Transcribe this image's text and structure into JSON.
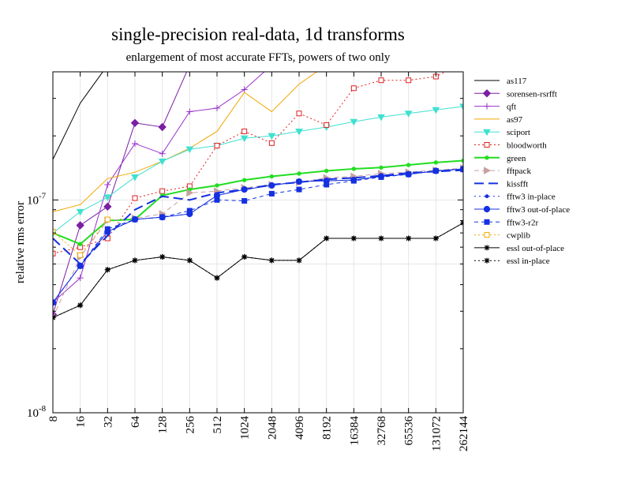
{
  "chart_data": {
    "type": "line",
    "title": "single-precision real-data, 1d transforms",
    "subtitle": "enlargement of most accurate FFTs, powers of two only",
    "xlabel": "",
    "ylabel": "relative rms error",
    "yscale": "log",
    "ylim": [
      1e-08,
      4e-07
    ],
    "y_tick_labels": [
      {
        "mantissa": "10",
        "exponent": "-8",
        "value": 1e-08
      },
      {
        "mantissa": "10",
        "exponent": "-7",
        "value": 1e-07
      }
    ],
    "categories": [
      "8",
      "16",
      "32",
      "64",
      "128",
      "256",
      "512",
      "1024",
      "2048",
      "4096",
      "8192",
      "16384",
      "32768",
      "65536",
      "131072",
      "262144"
    ],
    "legend_position": "right",
    "series": [
      {
        "name": "as117",
        "color": "#000000",
        "dash": "",
        "marker": "none",
        "values": [
          1.55e-07,
          2.85e-07,
          4.3e-07,
          null,
          null,
          null,
          null,
          null,
          null,
          null,
          null,
          null,
          null,
          null,
          null,
          null
        ]
      },
      {
        "name": "sorensen-rsrfft",
        "color": "#7B1FA2",
        "dash": "",
        "marker": "diamond",
        "values": [
          2.9e-08,
          7.6e-08,
          9.3e-08,
          2.3e-07,
          2.2e-07,
          4.3e-07,
          null,
          null,
          null,
          null,
          null,
          null,
          null,
          null,
          null,
          null
        ]
      },
      {
        "name": "qft",
        "color": "#9932CC",
        "dash": "",
        "marker": "plus",
        "values": [
          3.3e-08,
          4.3e-08,
          1.18e-07,
          1.84e-07,
          1.65e-07,
          2.6e-07,
          2.7e-07,
          3.3e-07,
          4.3e-07,
          null,
          null,
          null,
          null,
          null,
          null,
          null
        ]
      },
      {
        "name": "as97",
        "color": "#F0A800",
        "dash": "",
        "marker": "none",
        "values": [
          8.8e-08,
          9.5e-08,
          1.26e-07,
          1.35e-07,
          1.52e-07,
          1.75e-07,
          2.1e-07,
          3.2e-07,
          2.6e-07,
          3.5e-07,
          4.3e-07,
          null,
          null,
          null,
          null,
          null
        ]
      },
      {
        "name": "sciport",
        "color": "#40E0D0",
        "dash": "",
        "marker": "tri-down",
        "values": [
          7e-08,
          8.8e-08,
          1.03e-07,
          1.28e-07,
          1.52e-07,
          1.73e-07,
          1.8e-07,
          1.95e-07,
          2e-07,
          2.1e-07,
          2.2e-07,
          2.33e-07,
          2.45e-07,
          2.55e-07,
          2.65e-07,
          2.75e-07
        ]
      },
      {
        "name": "bloodworth",
        "color": "#E02020",
        "dash": "2,3",
        "marker": "square-open",
        "values": [
          5.6e-08,
          6e-08,
          6.6e-08,
          1.02e-07,
          1.1e-07,
          1.16e-07,
          1.8e-07,
          2.1e-07,
          1.85e-07,
          2.55e-07,
          2.25e-07,
          3.35e-07,
          3.65e-07,
          3.65e-07,
          3.8e-07,
          4.4e-07
        ]
      },
      {
        "name": "green",
        "color": "#22DD22",
        "dash": "",
        "marker": "circle-small",
        "values": [
          7e-08,
          6.2e-08,
          8e-08,
          8.1e-08,
          1.05e-07,
          1.12e-07,
          1.17e-07,
          1.24e-07,
          1.29e-07,
          1.33e-07,
          1.37e-07,
          1.4e-07,
          1.42e-07,
          1.46e-07,
          1.5e-07,
          1.53e-07
        ]
      },
      {
        "name": "fftpack",
        "color": "#C8A0A0",
        "dash": "6,4",
        "marker": "tri-right",
        "values": [
          2.8e-08,
          5.4e-08,
          8e-08,
          8.2e-08,
          8.6e-08,
          1.08e-07,
          1.1e-07,
          1.14e-07,
          1.18e-07,
          1.21e-07,
          1.27e-07,
          1.29e-07,
          1.33e-07,
          1.35e-07,
          1.38e-07,
          1.41e-07
        ]
      },
      {
        "name": "kissfft",
        "color": "#1530E0",
        "dash": "12,6",
        "marker": "none",
        "values": [
          6.6e-08,
          5e-08,
          6.8e-08,
          9e-08,
          1.04e-07,
          1e-07,
          1.08e-07,
          1.12e-07,
          1.18e-07,
          1.21e-07,
          1.25e-07,
          1.27e-07,
          1.3e-07,
          1.34e-07,
          1.36e-07,
          1.38e-07
        ]
      },
      {
        "name": "fftw3 in-place",
        "color": "#1530E0",
        "dash": "2,4",
        "marker": "dot",
        "values": [
          3.3e-08,
          4.9e-08,
          7.1e-08,
          8.1e-08,
          8.3e-08,
          8.6e-08,
          1.05e-07,
          1.12e-07,
          1.17e-07,
          1.22e-07,
          1.23e-07,
          1.24e-07,
          1.29e-07,
          1.32e-07,
          1.37e-07,
          1.4e-07
        ]
      },
      {
        "name": "fftw3 out-of-place",
        "color": "#1530E0",
        "dash": "",
        "marker": "circle",
        "values": [
          3.3e-08,
          4.9e-08,
          7.1e-08,
          8.1e-08,
          8.3e-08,
          8.6e-08,
          1.05e-07,
          1.12e-07,
          1.17e-07,
          1.22e-07,
          1.23e-07,
          1.24e-07,
          1.29e-07,
          1.32e-07,
          1.37e-07,
          1.4e-07
        ]
      },
      {
        "name": "fftw3-r2r",
        "color": "#1530E0",
        "dash": "5,4",
        "marker": "square",
        "values": [
          3.3e-08,
          4.9e-08,
          7.3e-08,
          8.1e-08,
          8.3e-08,
          8.9e-08,
          1e-07,
          9.9e-08,
          1.07e-07,
          1.12e-07,
          1.18e-07,
          1.23e-07,
          1.28e-07,
          1.32e-07,
          1.37e-07,
          1.39e-07
        ]
      },
      {
        "name": "cwplib",
        "color": "#F0A800",
        "dash": "2,3",
        "marker": "square-open",
        "values": [
          7.1e-08,
          5.5e-08,
          8.1e-08,
          null,
          null,
          null,
          null,
          null,
          null,
          null,
          null,
          null,
          null,
          null,
          null,
          null
        ]
      },
      {
        "name": "essl out-of-place",
        "color": "#000000",
        "dash": "",
        "marker": "star",
        "values": [
          2.8e-08,
          3.2e-08,
          4.7e-08,
          5.2e-08,
          5.4e-08,
          5.2e-08,
          4.3e-08,
          5.4e-08,
          5.2e-08,
          5.2e-08,
          6.6e-08,
          6.6e-08,
          6.6e-08,
          6.6e-08,
          6.6e-08,
          7.8e-08
        ]
      },
      {
        "name": "essl in-place",
        "color": "#000000",
        "dash": "2,3",
        "marker": "star",
        "values": [
          2.8e-08,
          3.2e-08,
          4.7e-08,
          5.2e-08,
          5.4e-08,
          5.2e-08,
          4.3e-08,
          5.4e-08,
          5.2e-08,
          5.2e-08,
          6.6e-08,
          6.6e-08,
          6.6e-08,
          6.6e-08,
          6.6e-08,
          7.8e-08
        ]
      }
    ]
  }
}
